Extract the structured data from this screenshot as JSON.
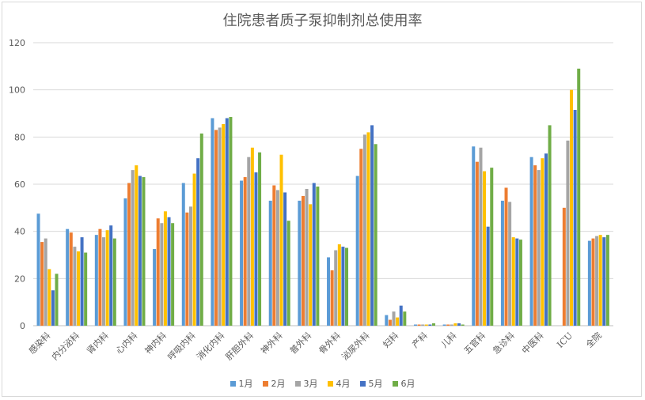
{
  "chart_data": {
    "type": "bar",
    "title": "住院患者质子泵抑制剂总使用率",
    "xlabel": "",
    "ylabel": "",
    "ylim": [
      0,
      120
    ],
    "yticks": [
      0,
      20,
      40,
      60,
      80,
      100,
      120
    ],
    "grid": true,
    "legend_position": "bottom",
    "categories": [
      "感染科",
      "内分泌科",
      "肾内科",
      "心内科",
      "神内科",
      "呼吸内科",
      "消化内科",
      "肝胆外科",
      "神外科",
      "普外科",
      "骨外科",
      "泌尿外科",
      "妇科",
      "产科",
      "儿科",
      "五官科",
      "急诊科",
      "中医科",
      "ICU",
      "全院"
    ],
    "series": [
      {
        "name": "1月",
        "color": "#5b9bd5",
        "values": [
          47.5,
          41,
          38.5,
          54,
          32.5,
          60.5,
          88,
          61.5,
          53,
          53,
          29,
          63.5,
          4.5,
          0.5,
          0.5,
          76,
          53,
          71.5,
          0,
          36
        ]
      },
      {
        "name": "2月",
        "color": "#ed7d31",
        "values": [
          35.5,
          39.5,
          41,
          60.5,
          45.5,
          48,
          83,
          63,
          59.5,
          55,
          23.5,
          75,
          2.5,
          0.5,
          0.5,
          69.5,
          58.5,
          68,
          50,
          37
        ]
      },
      {
        "name": "3月",
        "color": "#a5a5a5",
        "values": [
          37,
          33.5,
          37.5,
          66,
          43.5,
          50.5,
          84,
          71.5,
          57.5,
          58,
          32,
          81,
          6,
          0.5,
          0.5,
          75.5,
          52.5,
          66,
          78.5,
          38
        ]
      },
      {
        "name": "4月",
        "color": "#ffc000",
        "values": [
          24,
          31.5,
          40.5,
          68,
          48.5,
          64.5,
          85.5,
          75.5,
          72.5,
          51.5,
          34.5,
          82,
          3.5,
          0.5,
          1,
          65.5,
          37.5,
          71,
          100,
          38.5
        ]
      },
      {
        "name": "5月",
        "color": "#4472c4",
        "values": [
          15,
          37.5,
          42.5,
          63.5,
          46,
          71,
          88,
          65,
          56.5,
          60.5,
          33.5,
          85,
          8.5,
          0.5,
          1,
          42,
          37,
          73,
          91.5,
          37.5
        ]
      },
      {
        "name": "6月",
        "color": "#70ad47",
        "values": [
          22,
          31,
          37,
          63,
          43.5,
          81.5,
          88.5,
          73.5,
          44.5,
          59,
          33,
          77,
          6,
          1,
          0.5,
          67,
          36.5,
          85,
          109,
          38.5
        ]
      }
    ]
  }
}
